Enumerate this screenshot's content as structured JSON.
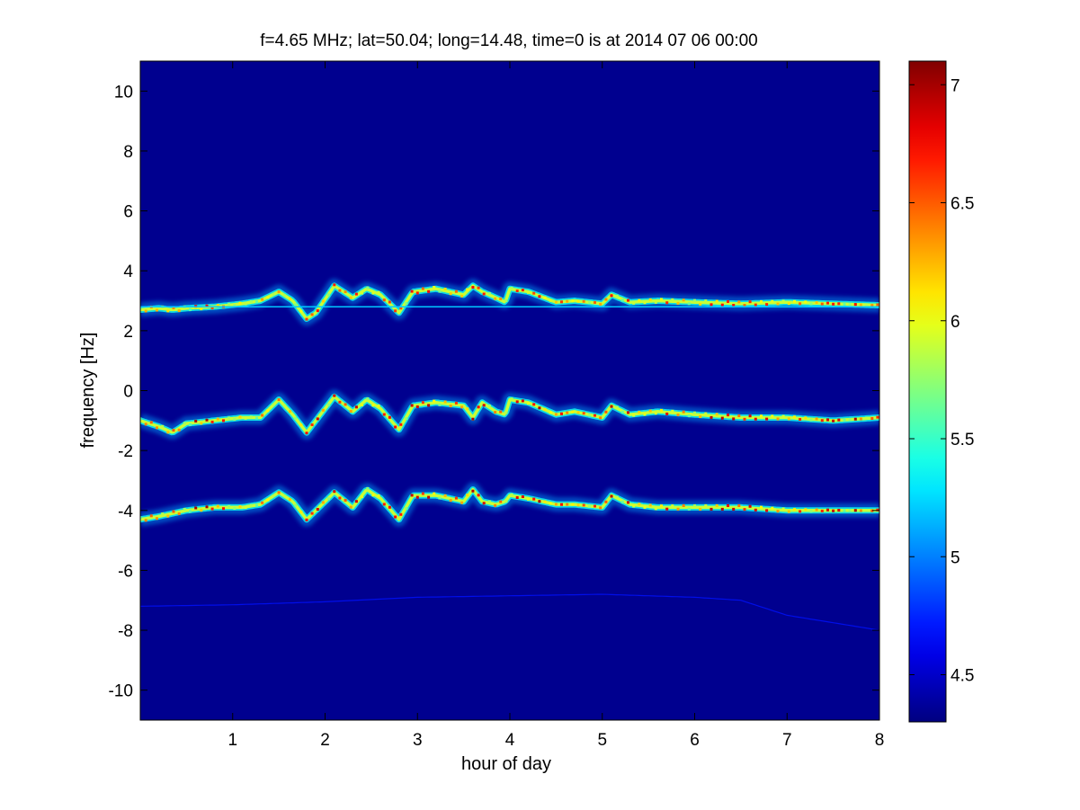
{
  "chart_data": {
    "type": "heatmap",
    "title": "f=4.65 MHz;  lat=50.04; long=14.48, time=0 is at 2014 07 06 00:00",
    "xlabel": "hour of day",
    "ylabel": "frequency [Hz]",
    "xlim": [
      0,
      8
    ],
    "ylim": [
      -11,
      11
    ],
    "x_ticks": [
      1,
      2,
      3,
      4,
      5,
      6,
      7,
      8
    ],
    "x_tick_labels": [
      "1",
      "2",
      "3",
      "4",
      "5",
      "6",
      "7",
      "8"
    ],
    "y_ticks": [
      10,
      8,
      6,
      4,
      2,
      0,
      -2,
      -4,
      -6,
      -8,
      -10
    ],
    "y_tick_labels": [
      "10",
      "8",
      "6",
      "4",
      "2",
      "0",
      "-2",
      "-4",
      "-6",
      "-8",
      "-10"
    ],
    "colorbar": {
      "colormap": "jet",
      "clim": [
        4.3,
        7.1
      ],
      "ticks": [
        7,
        6.5,
        6,
        5.5,
        5,
        4.5
      ],
      "tick_labels": [
        "7",
        "6.5",
        "6",
        "5.5",
        "5",
        "4.5"
      ]
    },
    "background_color": "#00008f",
    "traces": [
      {
        "hours": [
          0,
          0.2,
          0.35,
          0.5,
          0.8,
          1.1,
          1.3,
          1.5,
          1.65,
          1.8,
          1.9,
          2.1,
          2.3,
          2.45,
          2.6,
          2.8,
          2.95,
          3.2,
          3.5,
          3.6,
          3.7,
          3.85,
          3.95,
          4.0,
          4.2,
          4.5,
          4.7,
          5.0,
          5.1,
          5.3,
          5.6,
          6.0,
          6.5,
          7.0,
          7.5,
          8.0
        ],
        "frequency_hz": [
          2.7,
          2.75,
          2.7,
          2.75,
          2.8,
          2.9,
          3.0,
          3.3,
          3.0,
          2.4,
          2.6,
          3.5,
          3.1,
          3.4,
          3.2,
          2.6,
          3.3,
          3.4,
          3.2,
          3.5,
          3.3,
          3.1,
          2.95,
          3.4,
          3.3,
          2.95,
          3.0,
          2.9,
          3.2,
          2.95,
          3.0,
          2.95,
          2.9,
          2.95,
          2.9,
          2.85
        ],
        "peak_level": 6.8
      },
      {
        "hours": [
          0,
          0.2,
          0.35,
          0.5,
          0.8,
          1.1,
          1.3,
          1.5,
          1.65,
          1.8,
          1.9,
          2.1,
          2.3,
          2.45,
          2.6,
          2.8,
          2.95,
          3.2,
          3.5,
          3.6,
          3.7,
          3.85,
          3.95,
          4.0,
          4.2,
          4.5,
          4.7,
          5.0,
          5.1,
          5.3,
          5.6,
          6.0,
          6.5,
          7.0,
          7.5,
          8.0
        ],
        "frequency_hz": [
          -1.0,
          -1.2,
          -1.4,
          -1.1,
          -1.0,
          -0.9,
          -0.9,
          -0.3,
          -0.8,
          -1.4,
          -1.0,
          -0.2,
          -0.7,
          -0.3,
          -0.6,
          -1.3,
          -0.5,
          -0.4,
          -0.5,
          -0.9,
          -0.4,
          -0.7,
          -0.8,
          -0.3,
          -0.4,
          -0.8,
          -0.7,
          -0.9,
          -0.5,
          -0.8,
          -0.7,
          -0.8,
          -0.9,
          -0.9,
          -1.0,
          -0.9
        ],
        "peak_level": 7.0
      },
      {
        "hours": [
          0,
          0.2,
          0.35,
          0.5,
          0.8,
          1.1,
          1.3,
          1.5,
          1.65,
          1.8,
          1.9,
          2.1,
          2.3,
          2.45,
          2.6,
          2.8,
          2.95,
          3.2,
          3.5,
          3.6,
          3.7,
          3.85,
          3.95,
          4.0,
          4.2,
          4.5,
          4.7,
          5.0,
          5.1,
          5.3,
          5.6,
          6.0,
          6.5,
          7.0,
          7.5,
          8.0
        ],
        "frequency_hz": [
          -4.3,
          -4.2,
          -4.1,
          -4.0,
          -3.9,
          -3.9,
          -3.8,
          -3.4,
          -3.7,
          -4.3,
          -4.0,
          -3.4,
          -3.9,
          -3.3,
          -3.6,
          -4.3,
          -3.5,
          -3.5,
          -3.7,
          -3.3,
          -3.7,
          -3.8,
          -3.7,
          -3.5,
          -3.6,
          -3.8,
          -3.8,
          -3.9,
          -3.5,
          -3.8,
          -3.9,
          -3.9,
          -3.9,
          -4.0,
          -4.0,
          -4.0
        ],
        "peak_level": 7.0
      }
    ],
    "reference_lines": [
      {
        "frequency_hz": 2.8,
        "hours": [
          0,
          8
        ],
        "level": 5.2
      }
    ],
    "faint_trace": {
      "hours": [
        0,
        1,
        2,
        3,
        4,
        5,
        6,
        6.5,
        7,
        7.5,
        8
      ],
      "frequency_hz": [
        -7.2,
        -7.15,
        -7.05,
        -6.9,
        -6.85,
        -6.8,
        -6.9,
        -7.0,
        -7.5,
        -7.75,
        -8.0
      ],
      "level": 4.7
    }
  }
}
